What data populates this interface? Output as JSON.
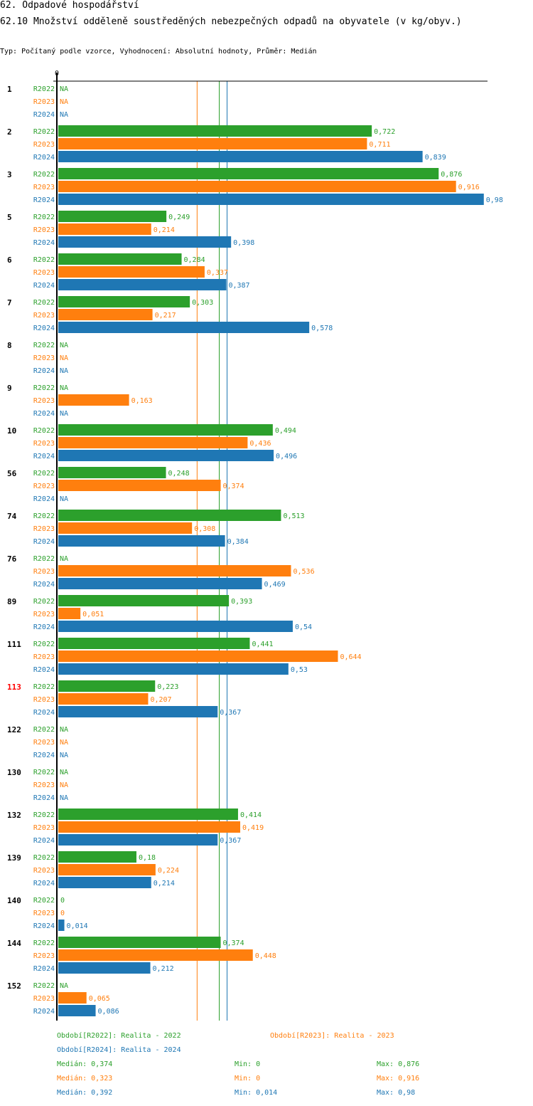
{
  "header": {
    "title": "62. Odpadové hospodářství",
    "subtitle": "62.10 Množství odděleně soustředěných nebezpečných odpadů na obyvatele (v kg/obyv.)",
    "meta": "Typ: Počítaný podle vzorce, Vyhodnocení: Absolutní hodnoty, Průměr: Medián"
  },
  "chart_data": {
    "type": "bar",
    "orientation": "horizontal",
    "title": "62.10 Množství odděleně soustředěných nebezpečných odpadů na obyvatele (v kg/obyv.)",
    "xlabel": "",
    "ylabel": "",
    "axis_zero_label": "0",
    "xlim": [
      0,
      0.98
    ],
    "grid": false,
    "decimal_separator": ",",
    "na_label": "NA",
    "series": [
      {
        "key": "R2022",
        "name": "Období[R2022]: Realita - 2022",
        "color": "#2ca02c"
      },
      {
        "key": "R2023",
        "name": "Období[R2023]: Realita - 2023",
        "color": "#ff7f0e"
      },
      {
        "key": "R2024",
        "name": "Období[R2024]: Realita - 2024",
        "color": "#1f77b4"
      }
    ],
    "categories": [
      "1",
      "2",
      "3",
      "5",
      "6",
      "7",
      "8",
      "9",
      "10",
      "56",
      "74",
      "76",
      "89",
      "111",
      "113",
      "122",
      "130",
      "132",
      "139",
      "140",
      "144",
      "152"
    ],
    "highlighted_category": "113",
    "highlight_color": "#ff0000",
    "values": {
      "R2022": [
        null,
        0.722,
        0.876,
        0.249,
        0.284,
        0.303,
        null,
        null,
        0.494,
        0.248,
        0.513,
        null,
        0.393,
        0.441,
        0.223,
        null,
        null,
        0.414,
        0.18,
        0,
        0.374,
        null
      ],
      "R2023": [
        null,
        0.711,
        0.916,
        0.214,
        0.337,
        0.217,
        null,
        0.163,
        0.436,
        0.374,
        0.308,
        0.536,
        0.051,
        0.644,
        0.207,
        null,
        null,
        0.419,
        0.224,
        0,
        0.448,
        0.065
      ],
      "R2024": [
        null,
        0.839,
        0.98,
        0.398,
        0.387,
        0.578,
        null,
        null,
        0.496,
        null,
        0.384,
        0.469,
        0.54,
        0.53,
        0.367,
        null,
        null,
        0.367,
        0.214,
        0.014,
        0.212,
        0.086
      ]
    },
    "medians": {
      "R2022": 0.374,
      "R2023": 0.323,
      "R2024": 0.392
    },
    "mins": {
      "R2022": 0,
      "R2023": 0,
      "R2024": 0.014
    },
    "maxs": {
      "R2022": 0.876,
      "R2023": 0.916,
      "R2024": 0.98
    }
  },
  "legend": {
    "periods": [
      {
        "label": "Období[R2022]: Realita - 2022",
        "color": "#2ca02c"
      },
      {
        "label": "Období[R2023]: Realita - 2023",
        "color": "#ff7f0e"
      },
      {
        "label": "Období[R2024]: Realita - 2024",
        "color": "#1f77b4"
      }
    ],
    "stats": [
      {
        "median": "Medián: 0,374",
        "min": "Min: 0",
        "max": "Max: 0,876",
        "color": "#2ca02c"
      },
      {
        "median": "Medián: 0,323",
        "min": "Min: 0",
        "max": "Max: 0,916",
        "color": "#ff7f0e"
      },
      {
        "median": "Medián: 0,392",
        "min": "Min: 0,014",
        "max": "Max: 0,98",
        "color": "#1f77b4"
      }
    ]
  }
}
